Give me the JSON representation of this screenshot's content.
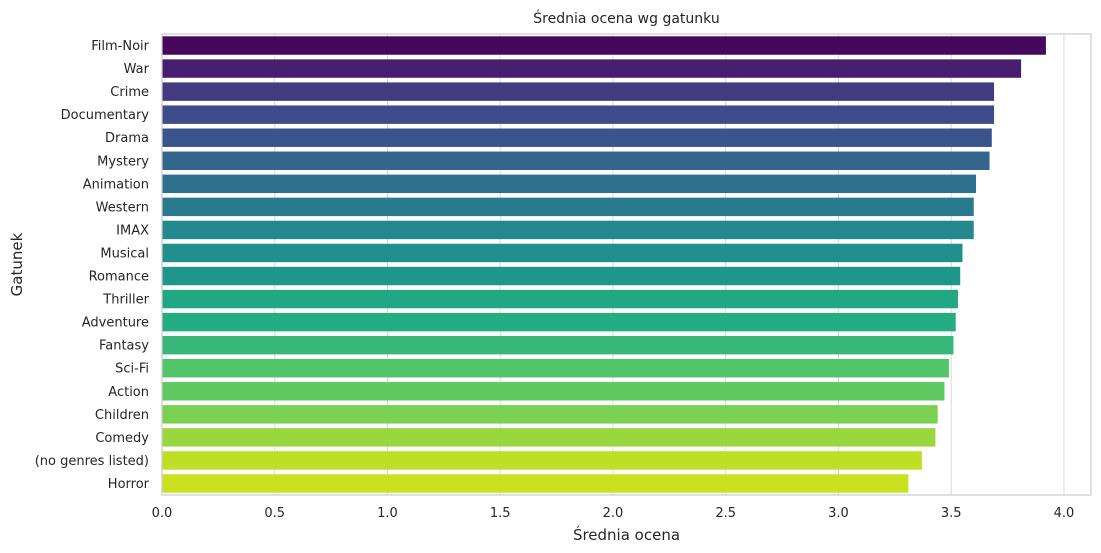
{
  "chart_data": {
    "type": "bar",
    "orientation": "horizontal",
    "title": "Średnia ocena wg gatunku",
    "xlabel": "Średnia ocena",
    "ylabel": "Gatunek",
    "categories": [
      "Film-Noir",
      "War",
      "Crime",
      "Documentary",
      "Drama",
      "Mystery",
      "Animation",
      "Western",
      "IMAX",
      "Musical",
      "Romance",
      "Thriller",
      "Adventure",
      "Fantasy",
      "Sci-Fi",
      "Action",
      "Children",
      "Comedy",
      "(no genres listed)",
      "Horror"
    ],
    "values": [
      3.92,
      3.81,
      3.69,
      3.69,
      3.68,
      3.67,
      3.61,
      3.6,
      3.6,
      3.55,
      3.54,
      3.53,
      3.52,
      3.51,
      3.49,
      3.47,
      3.44,
      3.43,
      3.37,
      3.31
    ],
    "xlim": [
      0,
      4.12
    ],
    "xticks": [
      "0.0",
      "0.5",
      "1.0",
      "1.5",
      "2.0",
      "2.5",
      "3.0",
      "3.5",
      "4.0"
    ],
    "grid": true,
    "palette": "viridis",
    "colors": [
      "#46085c",
      "#471e6e",
      "#443a80",
      "#3e4c8a",
      "#3a538b",
      "#32668d",
      "#2d718e",
      "#297a8e",
      "#23898e",
      "#21908d",
      "#1f968b",
      "#22a785",
      "#25ac82",
      "#37b878",
      "#52c569",
      "#60ca60",
      "#7ad151",
      "#98d83e",
      "#bddf26",
      "#cae11f"
    ],
    "frame_color": "#cccccc",
    "grid_color": "#d9d9d9"
  }
}
